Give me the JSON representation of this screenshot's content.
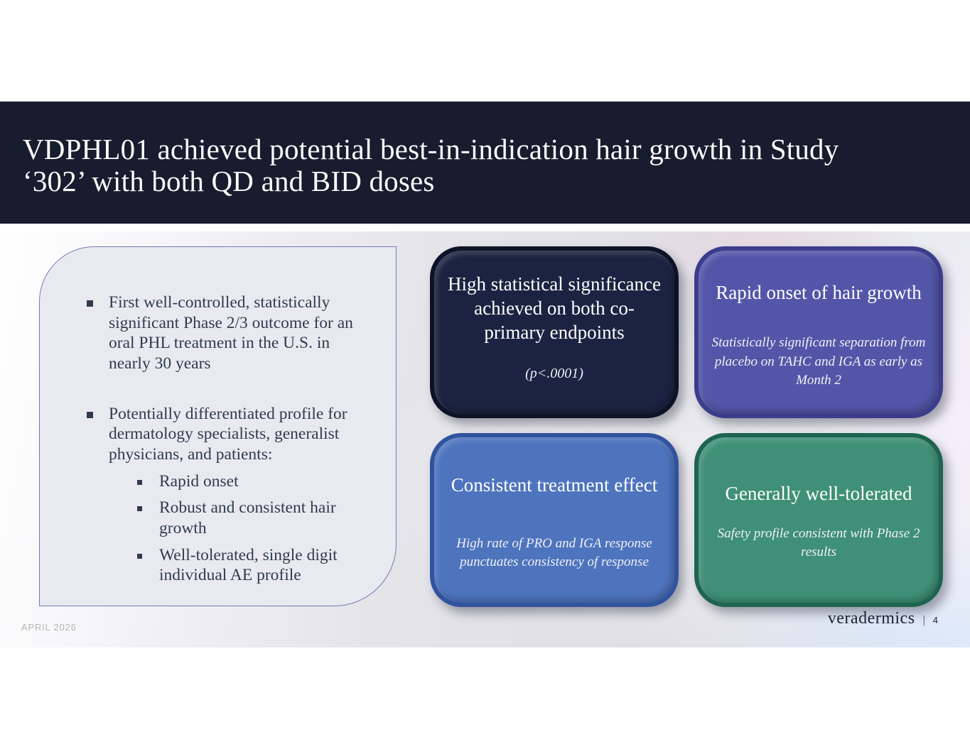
{
  "header": {
    "title_lines": [
      "VDPHL01 achieved potential best-in-indication hair growth in Study",
      "‘302’ with both QD and BID doses"
    ],
    "bg_color": "#171C2E"
  },
  "left_panel": {
    "bullets": [
      {
        "text": "First well-controlled, statistically significant Phase 2/3 outcome for an oral PHL treatment in the U.S. in nearly 30 years"
      },
      {
        "text": "Potentially differentiated profile for dermatology specialists, generalist physicians, and patients:",
        "sub_bullets": [
          "Rapid onset",
          "Robust and consistent hair growth",
          "Well-tolerated, single digit individual AE profile"
        ]
      }
    ],
    "bg_color": "#E9EAF0",
    "border_color": "#7678B6",
    "text_color": "#303B4F"
  },
  "cards": [
    {
      "title": "High statistical significance achieved on both co-primary endpoints",
      "subtitle": "(p<.0001)",
      "bg": "#1C2342",
      "border": "#0D1226"
    },
    {
      "title": "Rapid onset of hair growth",
      "subtitle": "Statistically significant separation from placebo on TAHC and IGA as early as Month 2",
      "bg": "#5356A8",
      "border": "#3B3D8C"
    },
    {
      "title": "Consistent treatment effect",
      "subtitle": "High rate of PRO and IGA response punctuates consistency of response",
      "bg": "#4E74BE",
      "border": "#30539F"
    },
    {
      "title": "Generally well-tolerated",
      "subtitle": "Safety profile consistent with Phase 2 results",
      "bg": "#3F9076",
      "border": "#1E6450"
    }
  ],
  "footer": {
    "date": "APRIL 2026",
    "brand": "veradermics",
    "divider": "|",
    "page": "4"
  }
}
